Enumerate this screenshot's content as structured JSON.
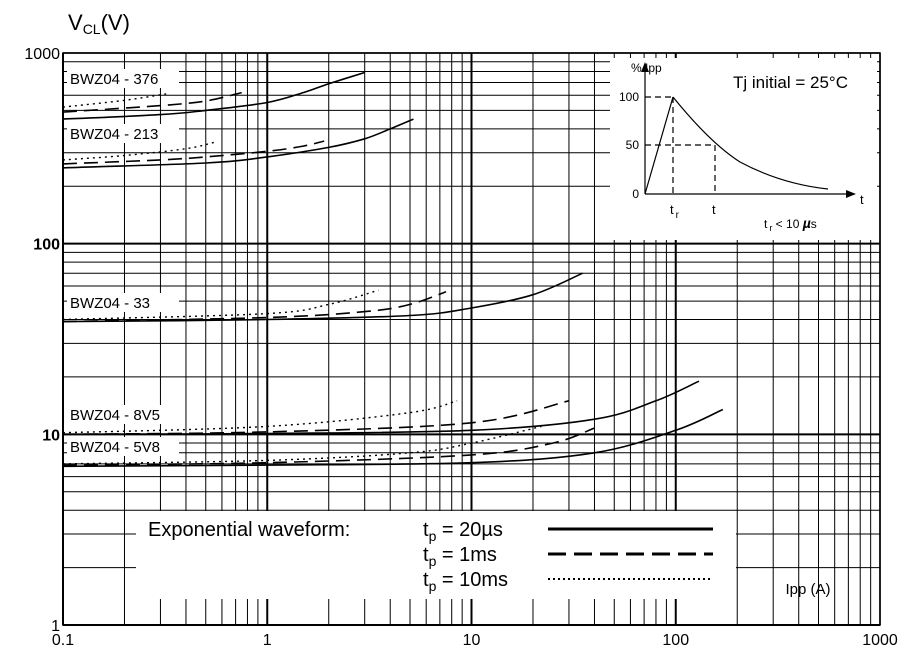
{
  "chart_data": {
    "type": "line",
    "xscale": "log",
    "yscale": "log",
    "xlim": [
      0.1,
      1000
    ],
    "ylim": [
      1,
      1000
    ],
    "ylabel_main": "V",
    "ylabel_sub": "CL",
    "ylabel_unit": "(V)",
    "xlabel": "Ipp  (A)",
    "x_ticks": [
      "0.1",
      "1",
      "10",
      "100",
      "1000"
    ],
    "y_ticks": [
      "1",
      "10",
      "100",
      "1000"
    ],
    "grid": true,
    "devices": [
      {
        "name": "BWZ04 - 376",
        "series": [
          {
            "style": "solid",
            "x": [
              0.1,
              0.3,
              0.5,
              1,
              1.5,
              2,
              3
            ],
            "y": [
              450,
              475,
              500,
              550,
              620,
              690,
              790
            ]
          },
          {
            "style": "dashed",
            "x": [
              0.1,
              0.3,
              0.5,
              0.75
            ],
            "y": [
              490,
              530,
              560,
              620
            ]
          },
          {
            "style": "dotted",
            "x": [
              0.1,
              0.2,
              0.32
            ],
            "y": [
              520,
              565,
              610
            ]
          }
        ]
      },
      {
        "name": "BWZ04 - 213",
        "series": [
          {
            "style": "solid",
            "x": [
              0.1,
              0.5,
              1,
              2,
              3,
              4,
              5.2
            ],
            "y": [
              250,
              265,
              285,
              320,
              355,
              400,
              450
            ]
          },
          {
            "style": "dashed",
            "x": [
              0.1,
              0.3,
              0.5,
              1,
              1.5,
              1.9
            ],
            "y": [
              262,
              275,
              285,
              305,
              325,
              345
            ]
          },
          {
            "style": "dotted",
            "x": [
              0.1,
              0.2,
              0.4,
              0.55
            ],
            "y": [
              275,
              290,
              315,
              340
            ]
          }
        ]
      },
      {
        "name": "BWZ04 - 33",
        "series": [
          {
            "style": "solid",
            "x": [
              0.1,
              1,
              5,
              10,
              20,
              35
            ],
            "y": [
              39,
              40,
              42,
              46,
              54,
              70
            ]
          },
          {
            "style": "dashed",
            "x": [
              0.1,
              1,
              3,
              5,
              7.5
            ],
            "y": [
              39,
              41,
              44,
              48,
              56
            ]
          },
          {
            "style": "dotted",
            "x": [
              0.1,
              1,
              2,
              3.5
            ],
            "y": [
              40,
              43,
              48,
              57
            ]
          }
        ]
      },
      {
        "name": "BWZ04 - 8V5",
        "series": [
          {
            "style": "solid",
            "x": [
              0.1,
              1,
              10,
              40,
              80,
              130
            ],
            "y": [
              10,
              10.1,
              10.5,
              12,
              15,
              19
            ]
          },
          {
            "style": "dashed",
            "x": [
              0.1,
              1,
              10,
              30
            ],
            "y": [
              10,
              10.3,
              11.5,
              15
            ]
          },
          {
            "style": "dotted",
            "x": [
              0.1,
              1,
              5,
              8.5
            ],
            "y": [
              10.2,
              11,
              13,
              15
            ]
          }
        ]
      },
      {
        "name": "BWZ04 - 5V8",
        "series": [
          {
            "style": "solid",
            "x": [
              0.1,
              1,
              10,
              40,
              100,
              170
            ],
            "y": [
              6.8,
              6.9,
              7.1,
              8,
              10.5,
              13.5
            ]
          },
          {
            "style": "dashed",
            "x": [
              0.1,
              1,
              10,
              25,
              40
            ],
            "y": [
              6.9,
              7.1,
              7.8,
              9,
              10.8
            ]
          },
          {
            "style": "dotted",
            "x": [
              0.1,
              1,
              5,
              10,
              22
            ],
            "y": [
              7,
              7.3,
              8,
              9,
              11
            ]
          }
        ]
      }
    ],
    "legend": {
      "heading": "Exponential waveform:",
      "placement": "bottom-center",
      "entries": [
        {
          "label_main": "t",
          "label_sub": "p",
          "label_rest": " = 20µs",
          "style": "solid"
        },
        {
          "label_main": "t",
          "label_sub": "p",
          "label_rest": " = 1ms",
          "style": "dashed"
        },
        {
          "label_main": "t",
          "label_sub": "p",
          "label_rest": " = 10ms",
          "style": "dotted"
        }
      ]
    },
    "inset": {
      "placement": "top-right",
      "title": "Tj initial = 25°C",
      "yaxis_label": "% Ipp",
      "y_ticks": [
        "100",
        "50",
        "0"
      ],
      "x_axis_label": "t",
      "tr_label_main": "t",
      "tr_label_sub": "r",
      "t_label": "t",
      "note_main": "t",
      "note_sub": "r",
      "note_rest": " < 10 ",
      "note_mu": "µ",
      "note_s": "s"
    }
  }
}
